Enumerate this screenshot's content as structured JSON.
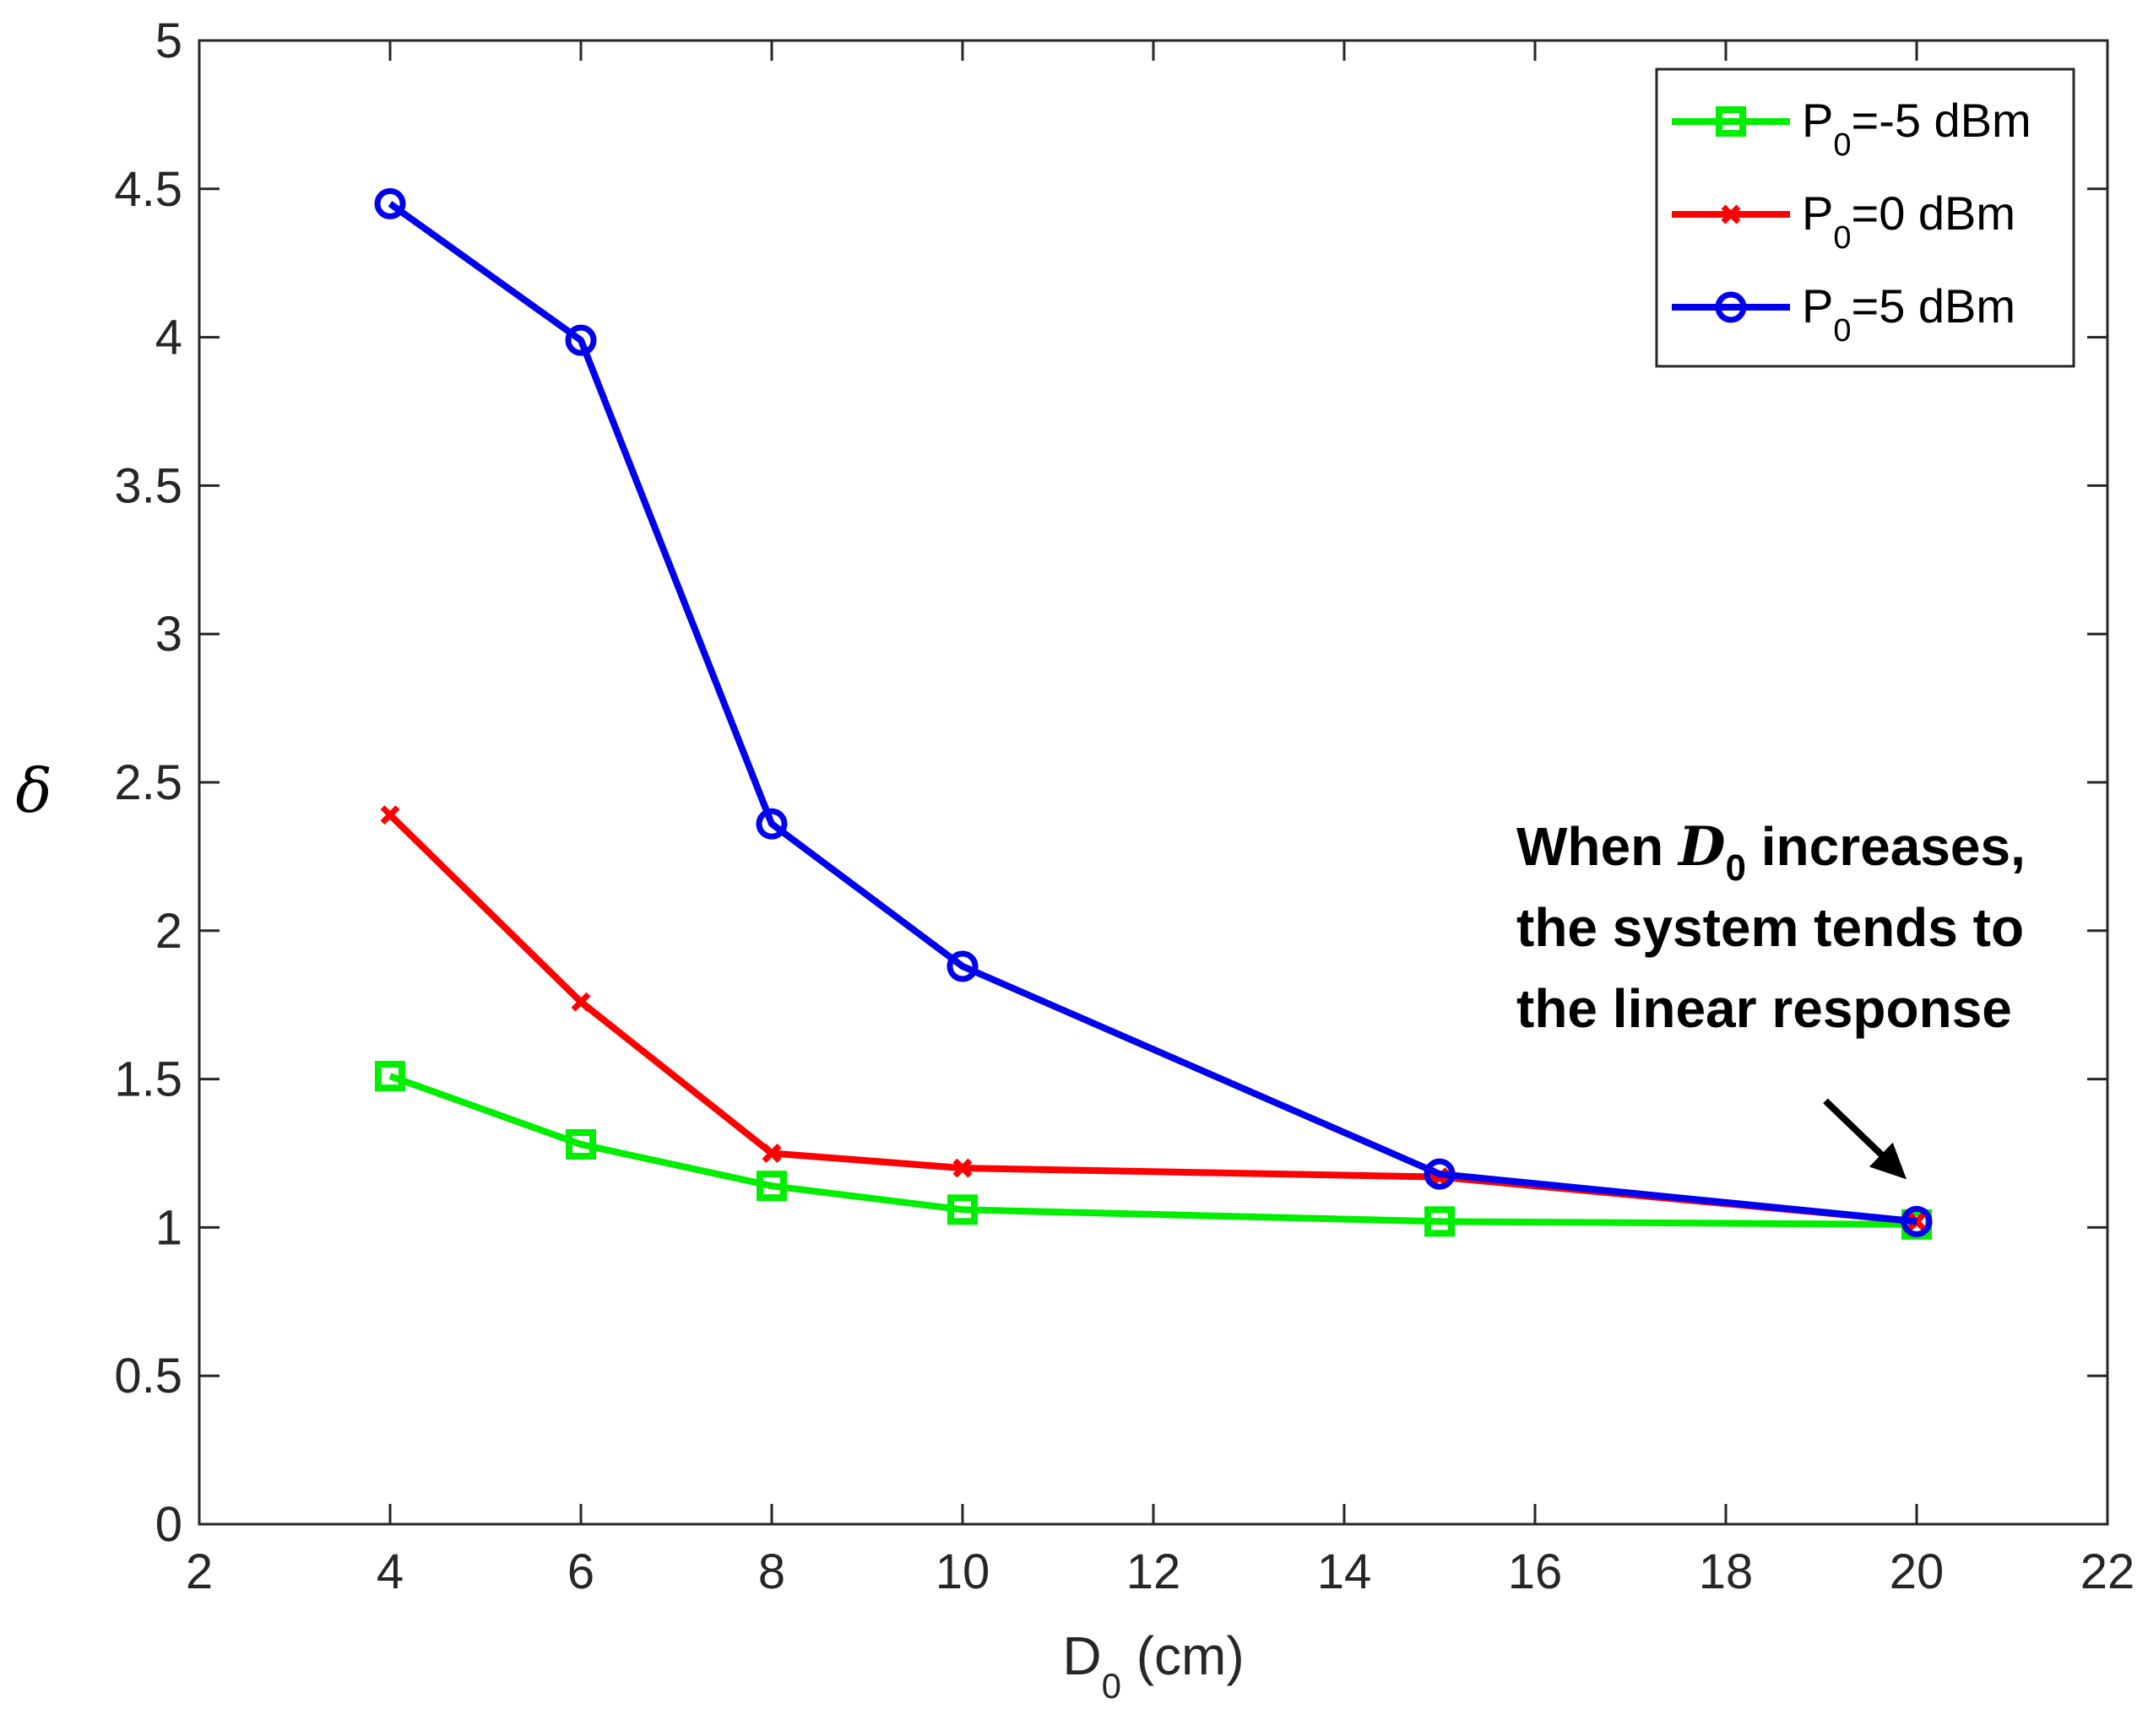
{
  "chart_data": {
    "type": "line",
    "title": "",
    "xlabel": {
      "main": "D",
      "sub": "0",
      "rest": " (cm)"
    },
    "ylabel": "δ",
    "xlim": [
      2,
      22
    ],
    "ylim": [
      0,
      5
    ],
    "xticks": [
      2,
      4,
      6,
      8,
      10,
      12,
      14,
      16,
      18,
      20,
      22
    ],
    "xtick_labels": [
      "2",
      "4",
      "6",
      "8",
      "10",
      "12",
      "14",
      "16",
      "18",
      "20",
      "22"
    ],
    "yticks": [
      0,
      0.5,
      1,
      1.5,
      2,
      2.5,
      3,
      3.5,
      4,
      4.5,
      5
    ],
    "ytick_labels": [
      "0",
      "0.5",
      "1",
      "1.5",
      "2",
      "2.5",
      "3",
      "3.5",
      "4",
      "4.5",
      "5"
    ],
    "grid": false,
    "legend_position": "top-right",
    "x": [
      4,
      6,
      8,
      10,
      15,
      20
    ],
    "series": [
      {
        "name": "P0=-5 dBm",
        "label_main": "P",
        "label_sub": "0",
        "label_rest": "=-5 dBm",
        "color": "#00ee00",
        "marker": "square",
        "values": [
          1.51,
          1.28,
          1.14,
          1.06,
          1.02,
          1.01
        ]
      },
      {
        "name": "P0=0 dBm",
        "label_main": "P",
        "label_sub": "0",
        "label_rest": "=0 dBm",
        "color": "#ff0000",
        "marker": "x",
        "values": [
          2.39,
          1.76,
          1.25,
          1.2,
          1.17,
          1.02
        ]
      },
      {
        "name": "P0=5 dBm",
        "label_main": "P",
        "label_sub": "0",
        "label_rest": "=5 dBm",
        "color": "#0000ee",
        "marker": "circle",
        "values": [
          4.45,
          3.99,
          2.36,
          1.88,
          1.18,
          1.02
        ]
      }
    ],
    "annotation": {
      "line1_a": "When ",
      "line1_var": "D",
      "line1_sub": "0",
      "line1_b": " increases,",
      "line2": "the system tends to",
      "line3": "the linear response",
      "arrow_target_x": 20,
      "arrow_target_y": 1.02
    }
  }
}
